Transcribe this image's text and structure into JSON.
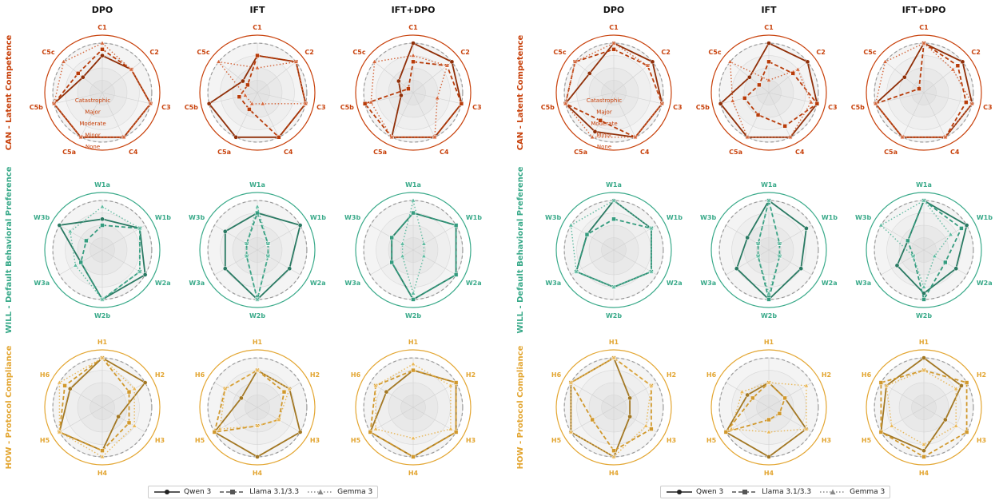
{
  "chart_data": {
    "type": "radar",
    "scale_rings": [
      "Catastrophic",
      "Major",
      "Moderate",
      "Minor",
      "None"
    ],
    "rows": [
      {
        "key": "CAN",
        "label": "CAN - Latent Competence",
        "color": "#c8410b",
        "axes": [
          "C1",
          "C2",
          "C3",
          "C4",
          "C5a",
          "C5b",
          "C5c"
        ]
      },
      {
        "key": "WILL",
        "label": "WILL - Default Behavioral Preference",
        "color": "#3aaa8a",
        "axes": [
          "W1a",
          "W1b",
          "W2a",
          "W2b",
          "W3a",
          "W3b"
        ]
      },
      {
        "key": "HOW",
        "label": "HOW - Protocol Compliance",
        "color": "#e3a632",
        "axes": [
          "H1",
          "H2",
          "H3",
          "H4",
          "H5",
          "H6"
        ]
      }
    ],
    "legend": [
      {
        "name": "Qwen 3",
        "marker": "circle",
        "dash": "solid"
      },
      {
        "name": "Llama 3.1/3.3",
        "marker": "square",
        "dash": "dashed"
      },
      {
        "name": "Gemma 3",
        "marker": "triangle",
        "dash": "dotted"
      }
    ],
    "panels": [
      {
        "columns": [
          "DPO",
          "IFT",
          "IFT+DPO"
        ],
        "values": {
          "CAN": [
            {
              "Qwen 3": [
                3,
                3,
                4,
                4,
                4,
                4,
                2
              ],
              "Llama 3.1/3.3": [
                3.5,
                3,
                4,
                4,
                4,
                4,
                2.5
              ],
              "Gemma 3": [
                4,
                3,
                4,
                4,
                4,
                4,
                4
              ]
            },
            {
              "Qwen 3": [
                3,
                4,
                4,
                4,
                4,
                4,
                1.5
              ],
              "Llama 3.1/3.3": [
                3,
                4,
                4,
                4,
                1.5,
                1.5,
                1
              ],
              "Gemma 3": [
                2,
                4,
                4,
                1,
                1,
                1,
                4
              ]
            },
            {
              "Qwen 3": [
                4,
                4,
                4,
                4,
                4,
                1,
                1.5
              ],
              "Llama 3.1/3.3": [
                2.5,
                3.5,
                4,
                4,
                4,
                4,
                0.5
              ],
              "Gemma 3": [
                3,
                3.5,
                2,
                4,
                4,
                3.5,
                4
              ]
            }
          ],
          "WILL": [
            {
              "Qwen 3": [
                2.5,
                3.5,
                4,
                4,
                2,
                4
              ],
              "Llama 3.1/3.3": [
                2,
                3.5,
                3.5,
                4,
                2,
                1.5
              ],
              "Gemma 3": [
                3.5,
                3.5,
                3.5,
                4,
                2.5,
                3
              ]
            },
            {
              "Qwen 3": [
                3,
                4,
                3,
                4,
                3,
                3
              ],
              "Llama 3.1/3.3": [
                3,
                1,
                1,
                4,
                1,
                1
              ],
              "Gemma 3": [
                3.5,
                1,
                1,
                4,
                1,
                1
              ]
            },
            {
              "Qwen 3": [
                3,
                4,
                4,
                4,
                2,
                2
              ],
              "Llama 3.1/3.3": [
                3,
                4,
                4,
                4,
                2,
                2
              ],
              "Gemma 3": [
                4,
                1,
                1,
                3.5,
                1,
                1
              ]
            }
          ],
          "HOW": [
            {
              "Qwen 3": [
                4,
                4,
                1.5,
                3.5,
                4,
                3
              ],
              "Llama 3.1/3.3": [
                4,
                2.5,
                2.5,
                3.5,
                4,
                3.5
              ],
              "Gemma 3": [
                4,
                3,
                3,
                4,
                4,
                4
              ]
            },
            {
              "Qwen 3": [
                3,
                3,
                4,
                4,
                4,
                1.5
              ],
              "Llama 3.1/3.3": [
                3,
                2.5,
                2,
                1.5,
                4,
                3
              ],
              "Gemma 3": [
                3,
                3,
                2,
                1.5,
                3.5,
                3
              ]
            },
            {
              "Qwen 3": [
                3,
                4,
                4,
                4,
                4,
                2.5
              ],
              "Llama 3.1/3.3": [
                3,
                4,
                4,
                4,
                4,
                3.5
              ],
              "Gemma 3": [
                3.5,
                3.5,
                3.5,
                2.5,
                3.5,
                3.5
              ]
            }
          ]
        }
      },
      {
        "columns": [
          "DPO",
          "IFT",
          "IFT+DPO"
        ],
        "values": {
          "CAN": [
            {
              "Qwen 3": [
                4,
                4,
                4,
                4,
                3.5,
                4,
                2.5
              ],
              "Llama 3.1/3.3": [
                3.5,
                3.5,
                4,
                4,
                2.5,
                4,
                4
              ],
              "Gemma 3": [
                4,
                3.5,
                4,
                4,
                4,
                4,
                4
              ]
            },
            {
              "Qwen 3": [
                4,
                4,
                4,
                4,
                4,
                4,
                2
              ],
              "Llama 3.1/3.3": [
                2.5,
                2.5,
                4,
                3,
                2,
                2,
                1
              ],
              "Gemma 3": [
                1,
                3,
                3.5,
                4,
                4,
                3,
                4
              ]
            },
            {
              "Qwen 3": [
                4,
                4,
                4,
                4,
                4,
                4,
                2
              ],
              "Llama 3.1/3.3": [
                4,
                3.5,
                3.5,
                4,
                4,
                4,
                0.5
              ],
              "Gemma 3": [
                4,
                3,
                4,
                4,
                4,
                4,
                4
              ]
            }
          ],
          "WILL": [
            {
              "Qwen 3": [
                4,
                3.5,
                3.5,
                3,
                3.5,
                2.5
              ],
              "Llama 3.1/3.3": [
                2.5,
                3.5,
                3.5,
                3,
                3.5,
                2.5
              ],
              "Gemma 3": [
                4,
                3.5,
                3.5,
                3,
                3.5,
                4
              ]
            },
            {
              "Qwen 3": [
                4,
                3.5,
                3,
                4,
                3,
                2
              ],
              "Llama 3.1/3.3": [
                4,
                1,
                1,
                4,
                1,
                1
              ],
              "Gemma 3": [
                4,
                1,
                1,
                3.5,
                1,
                1
              ]
            },
            {
              "Qwen 3": [
                4,
                4,
                3,
                3.5,
                2.5,
                1.5
              ],
              "Llama 3.1/3.3": [
                4,
                3.5,
                2,
                4,
                1,
                1.5
              ],
              "Gemma 3": [
                4,
                2.5,
                1,
                3,
                1,
                4
              ]
            }
          ],
          "HOW": [
            {
              "Qwen 3": [
                4,
                1.5,
                1.5,
                4,
                4,
                4
              ],
              "Llama 3.1/3.3": [
                4,
                3.5,
                3.5,
                3.5,
                2,
                4
              ],
              "Gemma 3": [
                4,
                3.5,
                3,
                4,
                4,
                4
              ]
            },
            {
              "Qwen 3": [
                2,
                1.5,
                3.5,
                4,
                4,
                2
              ],
              "Llama 3.1/3.3": [
                2,
                1.5,
                1,
                1,
                4,
                1.5
              ],
              "Gemma 3": [
                2,
                3.5,
                3.5,
                2,
                3.5,
                2.5
              ]
            },
            {
              "Qwen 3": [
                4,
                3.5,
                2,
                3.5,
                4,
                3.5
              ],
              "Llama 3.1/3.3": [
                3,
                4,
                4,
                4,
                4,
                4
              ],
              "Gemma 3": [
                3,
                3,
                3,
                3,
                3,
                3.5
              ]
            }
          ]
        }
      }
    ]
  }
}
